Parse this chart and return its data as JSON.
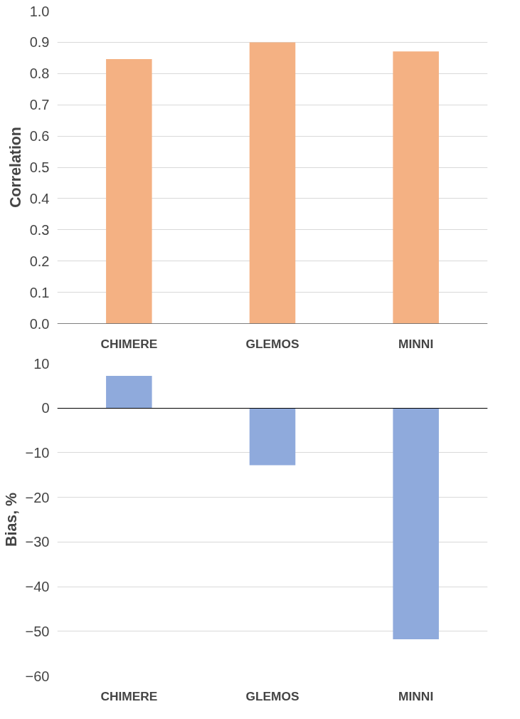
{
  "chart_data": [
    {
      "type": "bar",
      "ylabel": "Correlation",
      "categories": [
        "CHIMERE",
        "GLEMOS",
        "MINNI"
      ],
      "values": [
        0.846,
        0.9,
        0.871
      ],
      "color": "#f4b183",
      "ylim": [
        0,
        1
      ],
      "yticks": [
        {
          "value": 0,
          "label": "0.0"
        },
        {
          "value": 0.1,
          "label": "0.1"
        },
        {
          "value": 0.2,
          "label": "0.2"
        },
        {
          "value": 0.3,
          "label": "0.3"
        },
        {
          "value": 0.4,
          "label": "0.4"
        },
        {
          "value": 0.5,
          "label": "0.5"
        },
        {
          "value": 0.6,
          "label": "0.6"
        },
        {
          "value": 0.7,
          "label": "0.7"
        },
        {
          "value": 0.8,
          "label": "0.8"
        },
        {
          "value": 0.9,
          "label": "0.9"
        },
        {
          "value": 1,
          "label": "1.0"
        }
      ],
      "grid": "y"
    },
    {
      "type": "bar",
      "ylabel": "Bias, %",
      "categories": [
        "CHIMERE",
        "GLEMOS",
        "MINNI"
      ],
      "values": [
        7.2,
        -12.8,
        -51.8
      ],
      "color": "#8faadc",
      "ylim": [
        -60,
        10
      ],
      "yticks": [
        -60,
        -50,
        -40,
        -30,
        -20,
        -10,
        0,
        10
      ],
      "grid": "y"
    }
  ]
}
